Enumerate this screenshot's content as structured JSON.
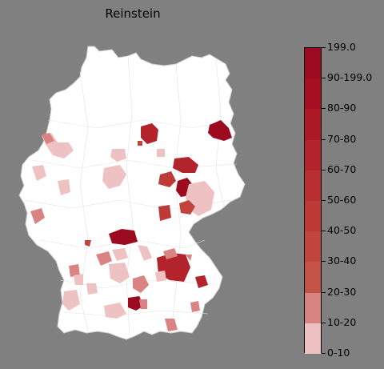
{
  "title": "Reinstein",
  "legend": {
    "labels": [
      "199.0",
      "90-199.0",
      "80-90",
      "70-80",
      "60-70",
      "50-60",
      "40-50",
      "30-40",
      "20-30",
      "10-20",
      "0-10"
    ],
    "colors": [
      "#9b0a1e",
      "#a60f22",
      "#ad1826",
      "#b2232b",
      "#b82e31",
      "#bd3a37",
      "#c2453d",
      "#c45245",
      "#d98383",
      "#eec2c2",
      "#ffffff"
    ]
  },
  "map": {
    "land_color": "#ffffff",
    "border_color": "#d0d0d0",
    "region_colors": {
      "dark": "#9b0a1e",
      "mid": "#b2232b",
      "mid2": "#c2453d",
      "pink": "#d98383",
      "light": "#eec2c2"
    }
  }
}
